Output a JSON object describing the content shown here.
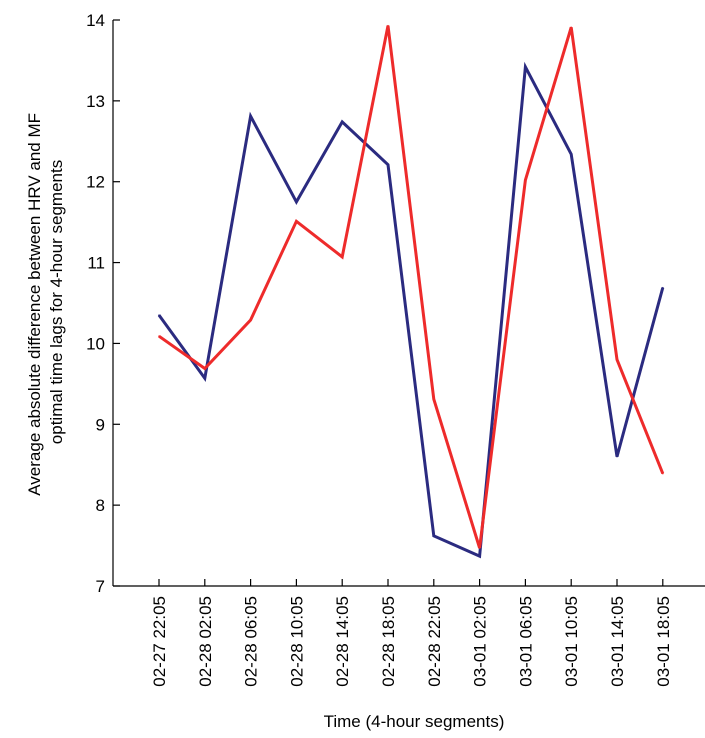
{
  "chart_data": {
    "type": "line",
    "xlabel": "Time (4-hour segments)",
    "ylabel": [
      "Average absolute difference between HRV and MF",
      "optimal time lags for 4-hour segments"
    ],
    "ylim": [
      7,
      14
    ],
    "yticks": [
      7,
      8,
      9,
      10,
      11,
      12,
      13,
      14
    ],
    "categories": [
      "02-27 22:05",
      "02-28 02:05",
      "02-28 06:05",
      "02-28 10:05",
      "02-28 14:05",
      "02-28 18:05",
      "02-28 22:05",
      "03-01 02:05",
      "03-01 06:05",
      "03-01 10:05",
      "03-01 14:05",
      "03-01 18:05"
    ],
    "grid": false,
    "legend": "none",
    "series": [
      {
        "color": "#2b2b80",
        "values": [
          10.35,
          9.57,
          12.81,
          11.75,
          12.74,
          12.21,
          7.62,
          7.37,
          13.42,
          12.34,
          8.6,
          10.69
        ]
      },
      {
        "color": "#ee2b2b",
        "values": [
          10.09,
          9.69,
          10.29,
          11.51,
          11.07,
          13.93,
          9.31,
          7.47,
          12.02,
          13.91,
          9.8,
          8.39
        ]
      }
    ]
  }
}
